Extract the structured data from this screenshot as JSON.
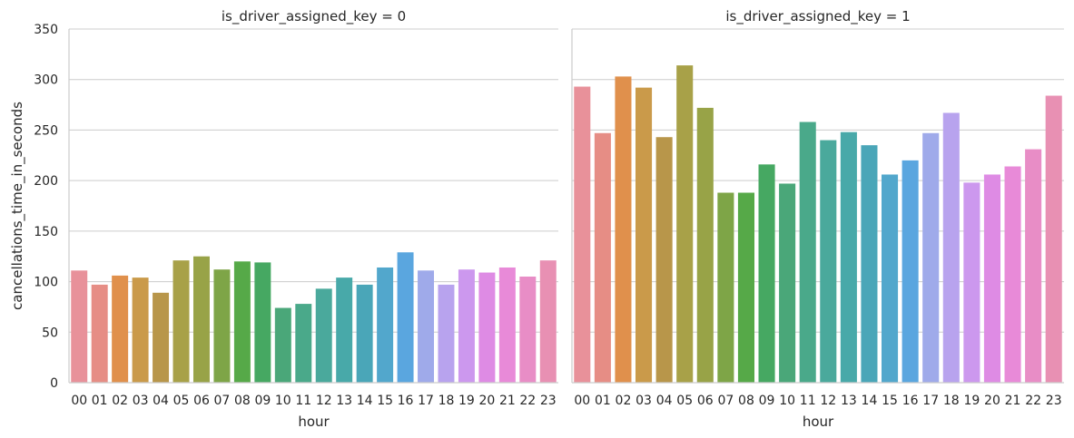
{
  "chart_data": [
    {
      "type": "bar",
      "title": "is_driver_assigned_key = 0",
      "xlabel": "hour",
      "ylabel": "cancellations_time_in_seconds",
      "ylim": [
        0,
        350
      ],
      "yticks": [
        0,
        50,
        100,
        150,
        200,
        250,
        300,
        350
      ],
      "grid": true,
      "categories": [
        "00",
        "01",
        "02",
        "03",
        "04",
        "05",
        "06",
        "07",
        "08",
        "09",
        "10",
        "11",
        "12",
        "13",
        "14",
        "15",
        "16",
        "17",
        "18",
        "19",
        "20",
        "21",
        "22",
        "23"
      ],
      "values": [
        111,
        97,
        106,
        104,
        89,
        121,
        125,
        112,
        120,
        119,
        74,
        78,
        93,
        104,
        97,
        114,
        129,
        111,
        97,
        112,
        109,
        114,
        105,
        121
      ]
    },
    {
      "type": "bar",
      "title": "is_driver_assigned_key = 1",
      "xlabel": "hour",
      "ylabel": "",
      "ylim": [
        0,
        350
      ],
      "yticks": [
        0,
        50,
        100,
        150,
        200,
        250,
        300,
        350
      ],
      "grid": true,
      "categories": [
        "00",
        "01",
        "02",
        "03",
        "04",
        "05",
        "06",
        "07",
        "08",
        "09",
        "10",
        "11",
        "12",
        "13",
        "14",
        "15",
        "16",
        "17",
        "18",
        "19",
        "20",
        "21",
        "22",
        "23"
      ],
      "values": [
        293,
        247,
        303,
        292,
        243,
        314,
        272,
        188,
        188,
        216,
        197,
        258,
        240,
        248,
        235,
        206,
        220,
        247,
        267,
        198,
        206,
        214,
        231,
        284
      ]
    }
  ],
  "colors": [
    "#e8919a",
    "#e68d85",
    "#e0904c",
    "#ca9a4a",
    "#b8964a",
    "#a8a148",
    "#98a347",
    "#7ea547",
    "#56a948",
    "#46a862",
    "#4aa779",
    "#4aa98a",
    "#4aa99c",
    "#48a9a9",
    "#4aa6b8",
    "#52a7cc",
    "#5aa6df",
    "#9faaea",
    "#b8a3ee",
    "#cc98ee",
    "#de8be4",
    "#e88ad8",
    "#e88dc6",
    "#e890b3"
  ]
}
